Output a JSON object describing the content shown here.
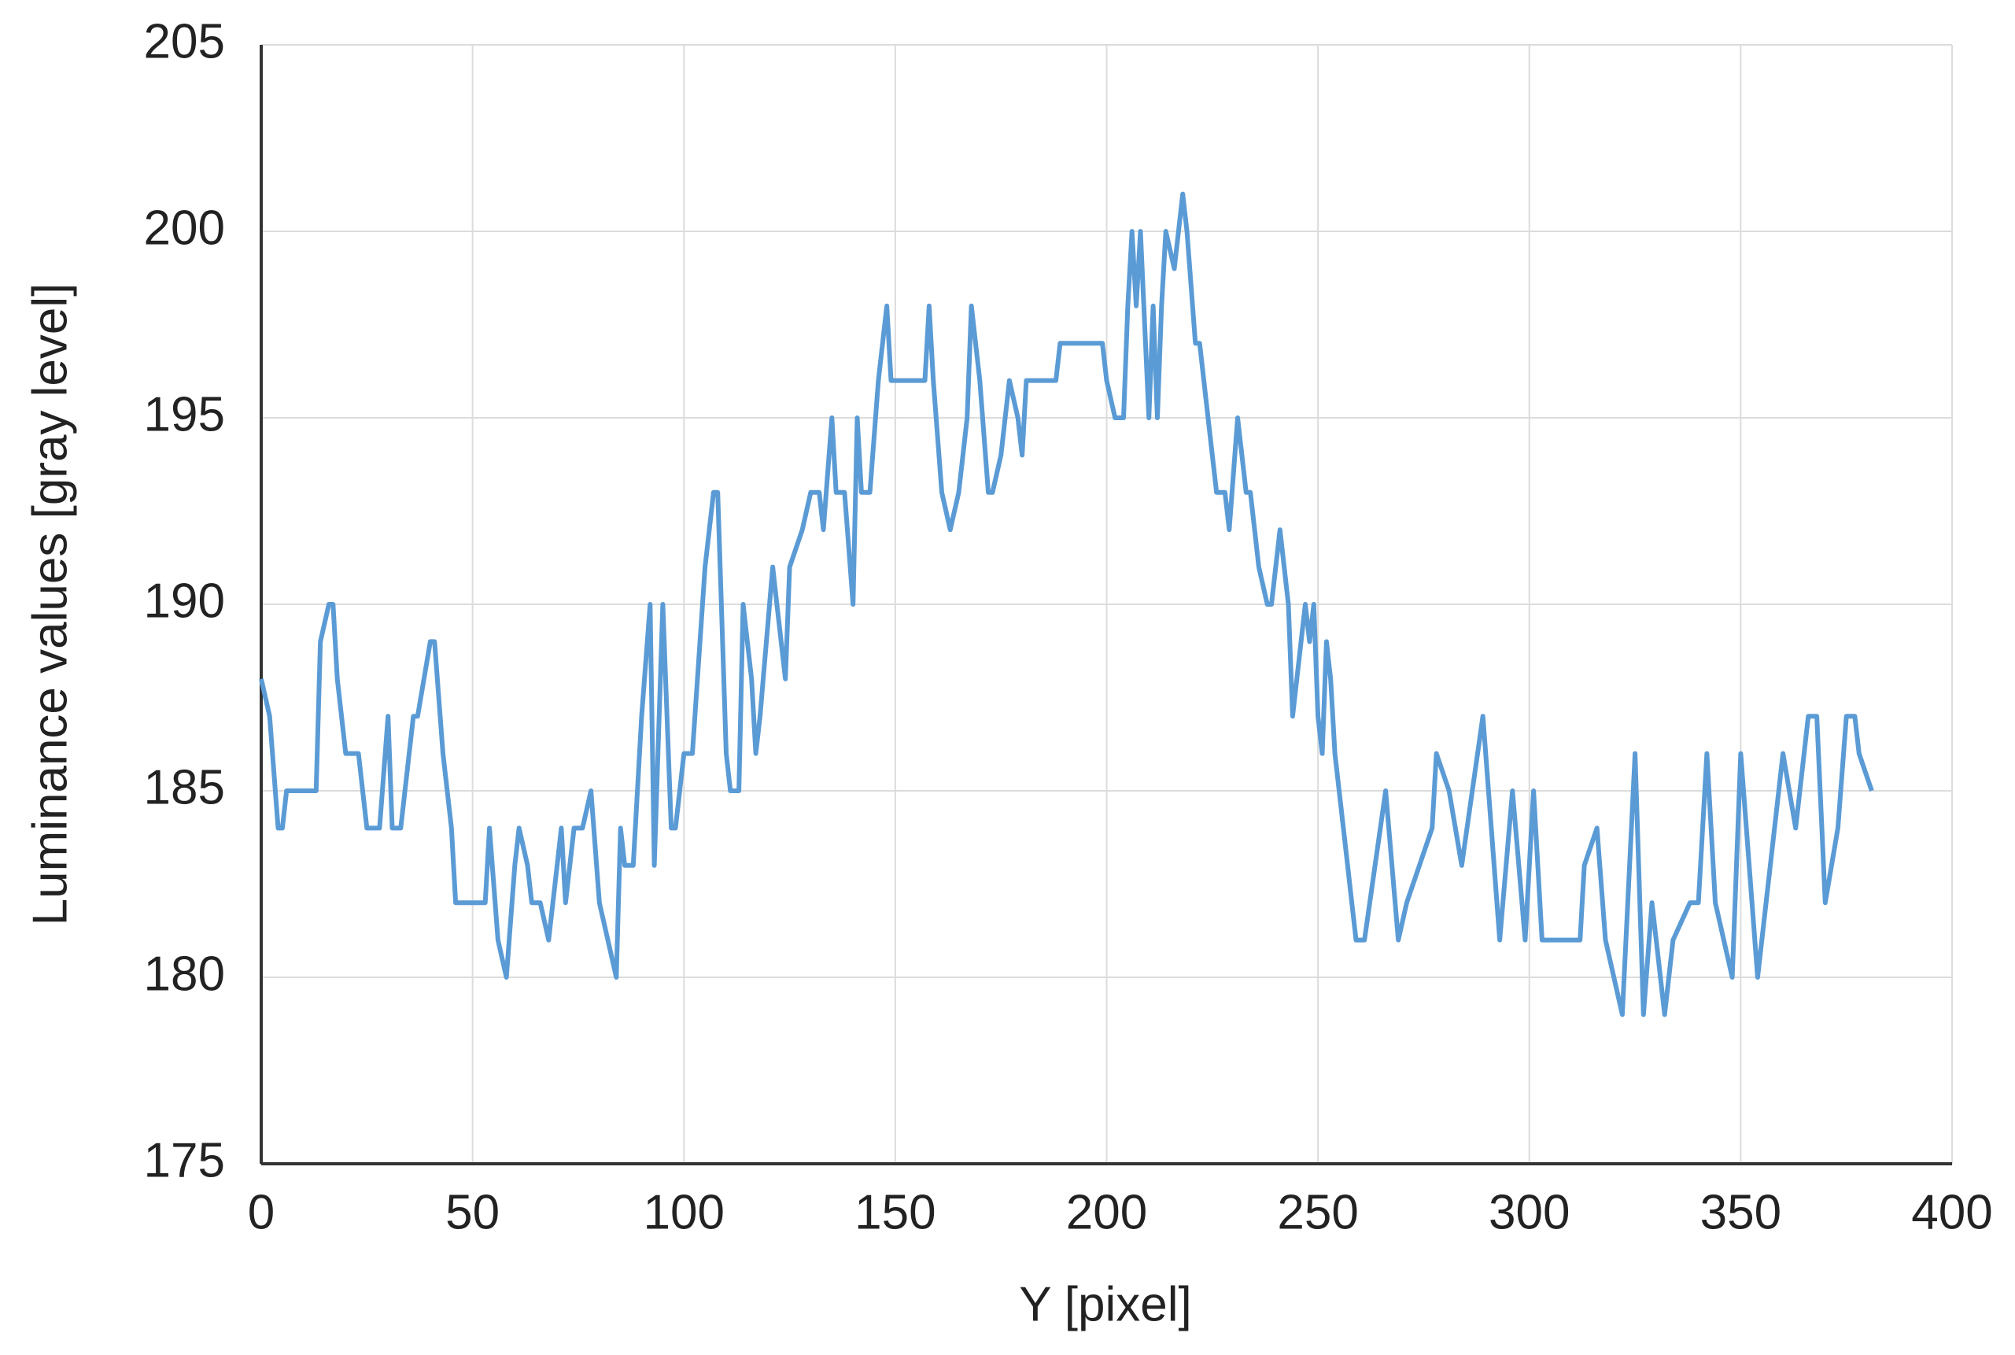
{
  "chart_data": {
    "type": "line",
    "x_label": "Y [pixel]",
    "y_label": "Luminance values [gray level]",
    "x": [
      0,
      2,
      4,
      5,
      6,
      13,
      14,
      16,
      17,
      18,
      20,
      23,
      25,
      28,
      30,
      31,
      33,
      36,
      37,
      40,
      41,
      43,
      45,
      46,
      53,
      54,
      56,
      58,
      60,
      61,
      63,
      64,
      66,
      68,
      70,
      71,
      72,
      74,
      76,
      78,
      80,
      84,
      85,
      86,
      88,
      90,
      92,
      93,
      95,
      97,
      98,
      100,
      102,
      105,
      107,
      108,
      110,
      111,
      113,
      114,
      116,
      117,
      118,
      121,
      122,
      124,
      125,
      128,
      130,
      132,
      133,
      135,
      136,
      138,
      140,
      141,
      142,
      144,
      146,
      148,
      149,
      157,
      158,
      159,
      161,
      163,
      165,
      167,
      168,
      170,
      172,
      173,
      175,
      177,
      179,
      180,
      181,
      183,
      188,
      189,
      199,
      200,
      202,
      204,
      205,
      206,
      207,
      208,
      210,
      211,
      212,
      213,
      214,
      216,
      218,
      219,
      221,
      222,
      224,
      226,
      228,
      229,
      231,
      233,
      234,
      236,
      238,
      239,
      241,
      243,
      244,
      246,
      247,
      248,
      249,
      250,
      251,
      252,
      253,
      254,
      255,
      256,
      258,
      259,
      261,
      266,
      269,
      271,
      277,
      278,
      281,
      284,
      289,
      293,
      296,
      299,
      301,
      303,
      312,
      313,
      316,
      318,
      322,
      325,
      327,
      329,
      332,
      334,
      338,
      340,
      342,
      344,
      348,
      350,
      354,
      360,
      363,
      366,
      368,
      370,
      373,
      375,
      377,
      378,
      381
    ],
    "values": [
      188,
      187,
      184,
      184,
      185,
      185,
      189,
      190,
      190,
      188,
      186,
      186,
      184,
      184,
      187,
      184,
      184,
      187,
      187,
      189,
      189,
      186,
      184,
      182,
      182,
      184,
      181,
      180,
      183,
      184,
      183,
      182,
      182,
      181,
      183,
      184,
      182,
      184,
      184,
      185,
      182,
      180,
      184,
      183,
      183,
      187,
      190,
      183,
      190,
      184,
      184,
      186,
      186,
      191,
      193,
      193,
      186,
      185,
      185,
      190,
      188,
      186,
      187,
      191,
      190,
      188,
      191,
      192,
      193,
      193,
      192,
      195,
      193,
      193,
      190,
      195,
      193,
      193,
      196,
      198,
      196,
      196,
      198,
      196,
      193,
      192,
      193,
      195,
      198,
      196,
      193,
      193,
      194,
      196,
      195,
      194,
      196,
      196,
      196,
      197,
      197,
      196,
      195,
      195,
      198,
      200,
      198,
      200,
      195,
      198,
      195,
      198,
      200,
      199,
      201,
      200,
      197,
      197,
      195,
      193,
      193,
      192,
      195,
      193,
      193,
      191,
      190,
      190,
      192,
      190,
      187,
      189,
      190,
      189,
      190,
      187,
      186,
      189,
      188,
      186,
      185,
      184,
      182,
      181,
      181,
      185,
      181,
      182,
      184,
      186,
      185,
      183,
      187,
      181,
      185,
      181,
      185,
      181,
      181,
      183,
      184,
      181,
      179,
      186,
      179,
      182,
      179,
      181,
      182,
      182,
      186,
      182,
      180,
      186,
      180,
      186,
      184,
      187,
      187,
      182,
      184,
      187,
      187,
      186,
      185
    ],
    "color": "#5b9bd5",
    "xlim": [
      0,
      400
    ],
    "xticks": [
      0,
      50,
      100,
      150,
      200,
      250,
      300,
      350,
      400
    ],
    "ylim": [
      175,
      205
    ],
    "yticks": [
      175,
      180,
      185,
      190,
      195,
      200,
      205
    ],
    "grid": true
  }
}
